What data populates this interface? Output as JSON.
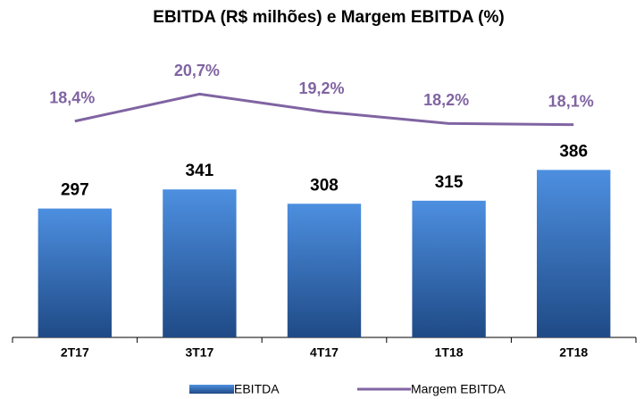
{
  "chart_data": {
    "type": "bar",
    "title": "EBITDA (R$ milhões) e Margem EBITDA (%)",
    "categories": [
      "2T17",
      "3T17",
      "4T17",
      "1T18",
      "2T18"
    ],
    "ylim": [
      0,
      650
    ],
    "y2lim": [
      0,
      24
    ],
    "series": [
      {
        "name": "EBITDA",
        "type": "bar",
        "color": "#3d77c2",
        "values": [
          297,
          341,
          308,
          315,
          386
        ]
      },
      {
        "name": "Margem EBITDA",
        "type": "line",
        "axis": "y2",
        "color": "#8064a2",
        "values": [
          18.4,
          20.7,
          19.2,
          18.2,
          18.1
        ],
        "value_labels": [
          "18,4%",
          "20,7%",
          "19,2%",
          "18,2%",
          "18,1%"
        ]
      }
    ]
  }
}
